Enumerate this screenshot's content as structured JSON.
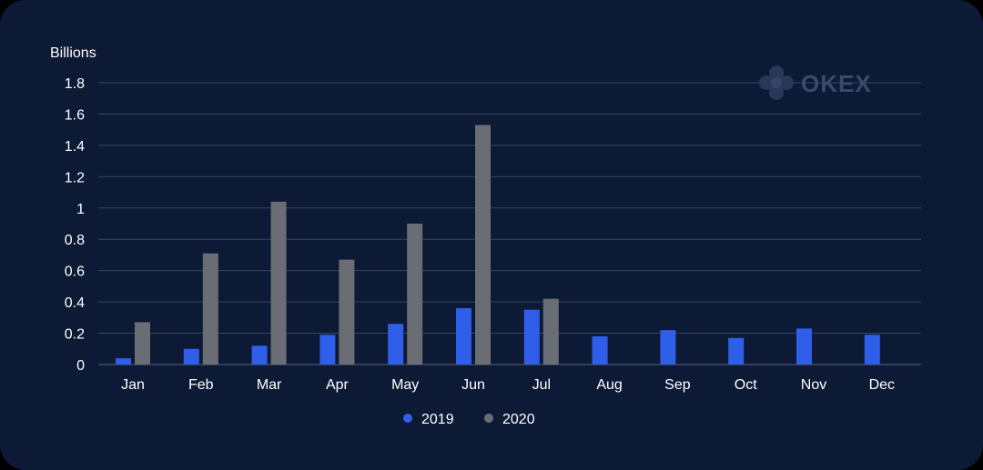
{
  "colors": {
    "background": "#0d1a36",
    "series_2019": "#2f5ee8",
    "series_2020": "#6b6d74",
    "grid": "#3a4560",
    "text": "#ffffff",
    "logo": "#3b4a6b"
  },
  "logo": {
    "text": "OKEX",
    "icon": "okex-logo-icon"
  },
  "chart_data": {
    "type": "bar",
    "ylabel": "Billions",
    "xlabel": "",
    "ylim": [
      0,
      1.8
    ],
    "yticks": [
      "0",
      "0.2",
      "0.4",
      "0.6",
      "0.8",
      "1",
      "1.2",
      "1.4",
      "1.6",
      "1.8"
    ],
    "categories": [
      "Jan",
      "Feb",
      "Mar",
      "Apr",
      "May",
      "Jun",
      "Jul",
      "Aug",
      "Sep",
      "Oct",
      "Nov",
      "Dec"
    ],
    "series": [
      {
        "name": "2019",
        "values": [
          0.04,
          0.1,
          0.12,
          0.19,
          0.26,
          0.36,
          0.35,
          0.18,
          0.22,
          0.17,
          0.23,
          0.19
        ]
      },
      {
        "name": "2020",
        "values": [
          0.27,
          0.71,
          1.04,
          0.67,
          0.9,
          1.53,
          0.42,
          null,
          null,
          null,
          null,
          null
        ]
      }
    ],
    "grid": true,
    "legend_position": "bottom-center"
  }
}
